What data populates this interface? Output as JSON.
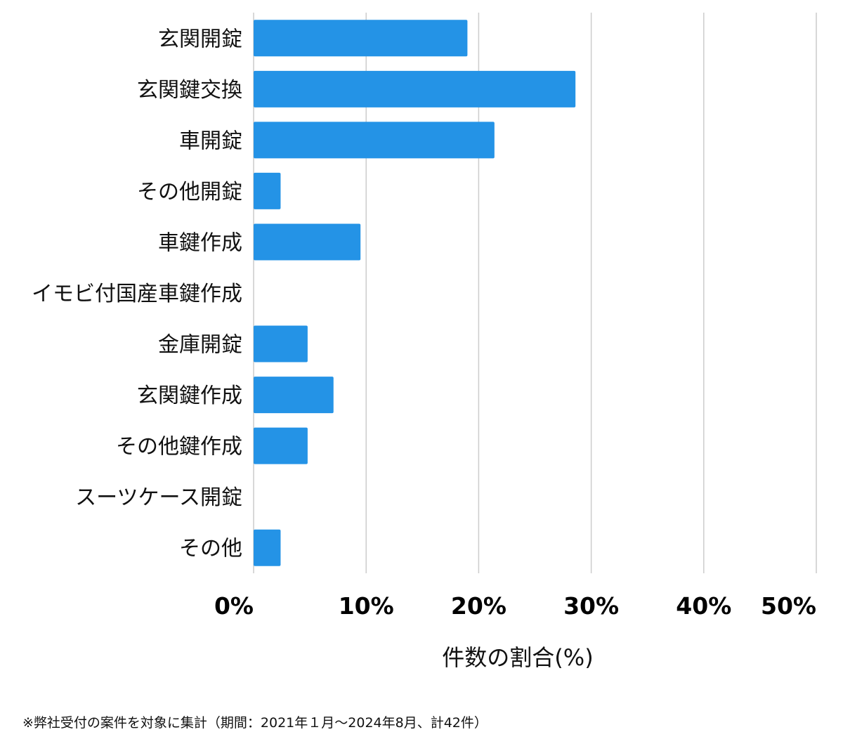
{
  "chart_data": {
    "type": "bar",
    "orientation": "horizontal",
    "categories": [
      "玄関開錠",
      "玄関鍵交換",
      "車開錠",
      "その他開錠",
      "車鍵作成",
      "イモビ付国産車鍵作成",
      "金庫開錠",
      "玄関鍵作成",
      "その他鍵作成",
      "スーツケース開錠",
      "その他"
    ],
    "values": [
      19.0,
      28.6,
      21.4,
      2.4,
      9.5,
      0,
      4.8,
      7.1,
      4.8,
      0,
      2.4
    ],
    "xlim": [
      0,
      50
    ],
    "x_ticks": [
      0,
      10,
      20,
      30,
      40,
      50
    ],
    "x_tick_labels": [
      "0%",
      "10%",
      "20%",
      "30%",
      "40%",
      "50%"
    ],
    "xlabel": "件数の割合(%)",
    "grid": true,
    "bar_color": "#2493e6"
  },
  "footnote": "※弊社受付の案件を対象に集計（期間：2021年１月～2024年8月、計42件）"
}
